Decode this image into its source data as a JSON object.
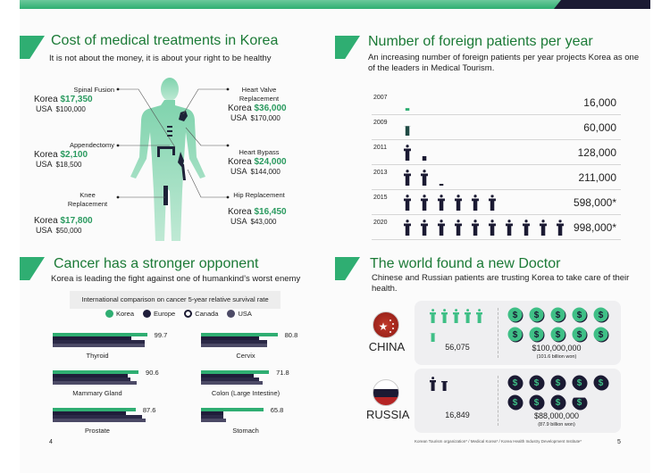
{
  "colors": {
    "brand_green": "#2fae72",
    "title_green": "#1b7a36",
    "navy": "#1b1a33",
    "korea": "#2fae72",
    "europe": "#1f1d3a",
    "canada": "#2b2947",
    "usa": "#4c4a66"
  },
  "cost": {
    "title": "Cost of medical treatments in Korea",
    "subtitle": "It is not about the money, it is about your right to be healthy",
    "korea_label": "Korea",
    "usa_label": "USA",
    "treatments": [
      {
        "name": "Spinal Fusion",
        "korea": "$17,350",
        "usa": "$100,000"
      },
      {
        "name": "Appendectomy",
        "korea": "$2,100",
        "usa": "$18,500"
      },
      {
        "name": "Knee Replacement",
        "korea": "$17,800",
        "usa": "$50,000"
      },
      {
        "name": "Heart Valve Replacement",
        "korea": "$36,000",
        "usa": "$170,000"
      },
      {
        "name": "Heart Bypass",
        "korea": "$24,000",
        "usa": "$144,000"
      },
      {
        "name": "Hip Replacement",
        "korea": "$16,450",
        "usa": "$43,000"
      }
    ]
  },
  "patients": {
    "title": "Number of foreign patients per year",
    "subtitle": "An increasing number of foreign patients per year projects Korea as one of the leaders in Medical Tourism.",
    "rows": [
      {
        "year": "2007",
        "value": 16000,
        "label": "16,000"
      },
      {
        "year": "2009",
        "value": 60000,
        "label": "60,000"
      },
      {
        "year": "2011",
        "value": 128000,
        "label": "128,000"
      },
      {
        "year": "2013",
        "value": 211000,
        "label": "211,000"
      },
      {
        "year": "2015",
        "value": 598000,
        "label": "598,000*"
      },
      {
        "year": "2020",
        "value": 998000,
        "label": "998,000*"
      }
    ]
  },
  "chart_data": {
    "type": "bar",
    "title": "International comparison on cancer 5-year relative survival rate",
    "legend": [
      "Korea",
      "Europe",
      "Canada",
      "USA"
    ],
    "categories": [
      "Thyroid",
      "Cervix",
      "Mammary Gland",
      "Colon (Large Intestine)",
      "Prostate",
      "Stomach"
    ],
    "series": [
      {
        "name": "Korea",
        "values": [
          99.7,
          80.8,
          90.6,
          71.8,
          87.6,
          65.8
        ]
      },
      {
        "name": "Europe",
        "values": [
          83,
          61,
          79,
          56,
          77,
          24
        ]
      },
      {
        "name": "Canada",
        "values": [
          97,
          70,
          82,
          61,
          94,
          24
        ]
      },
      {
        "name": "USA",
        "values": [
          97,
          70,
          89,
          65,
          98,
          26
        ]
      }
    ],
    "value_labels": [
      "99.7",
      "80.8",
      "90.6",
      "71.8",
      "87.6",
      "65.8"
    ]
  },
  "cancer": {
    "title": "Cancer has a stronger opponent",
    "subtitle": "Korea is leading the fight against one of humankind’s worst enemy"
  },
  "doctor": {
    "title": "The world found a new Doctor",
    "subtitle": "Chinese and Russian patients are trusting Korea to take care of their health.",
    "countries": [
      {
        "name": "CHINA",
        "patients": 56075,
        "patients_label": "56,075",
        "spend_millions": 100,
        "spend": "$100,000,000",
        "spend_won": "(101.6 billion won)",
        "color": "#3fbf86"
      },
      {
        "name": "RUSSIA",
        "patients": 16849,
        "patients_label": "16,849",
        "spend_millions": 88,
        "spend": "$88,000,000",
        "spend_won": "(87.9 billion won)",
        "color": "#1b1a33"
      }
    ]
  },
  "footer": {
    "page_left": "4",
    "page_right": "5",
    "source": "Korean Tourism organization* / Medical Korea* / Korea Health Industry Development Institute*"
  }
}
